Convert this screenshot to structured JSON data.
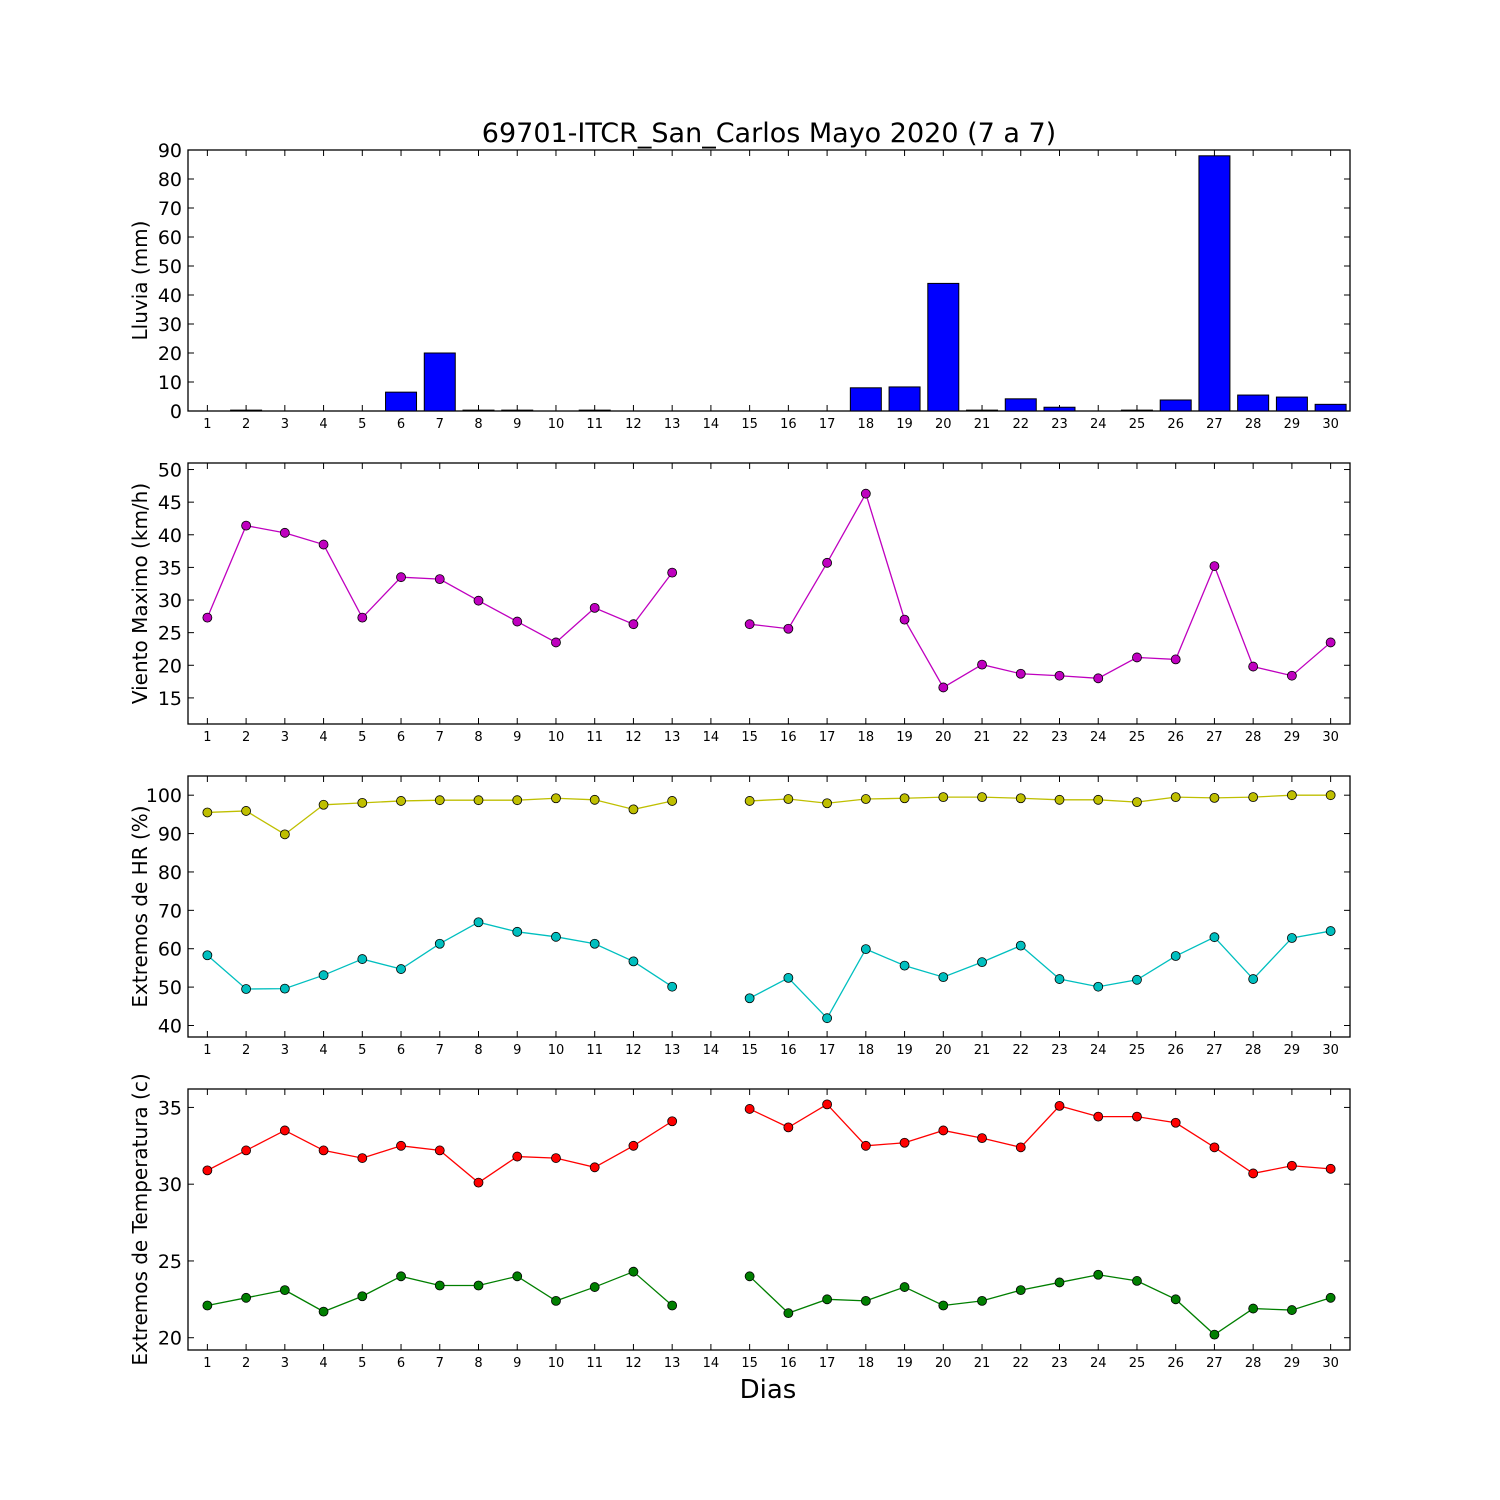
{
  "title": "69701-ITCR_San_Carlos Mayo 2020  (7 a 7)",
  "xlabel": "Dias",
  "chart_data": [
    {
      "type": "bar",
      "ylabel": "Lluvia (mm)",
      "ylim": [
        0,
        90
      ],
      "yticks": [
        0,
        10,
        20,
        30,
        40,
        50,
        60,
        70,
        80,
        90
      ],
      "x": [
        1,
        2,
        3,
        4,
        5,
        6,
        7,
        8,
        9,
        10,
        11,
        12,
        13,
        14,
        15,
        16,
        17,
        18,
        19,
        20,
        21,
        22,
        23,
        24,
        25,
        26,
        27,
        28,
        29,
        30
      ],
      "categories": [
        "1",
        "2",
        "3",
        "4",
        "5",
        "6",
        "7",
        "8",
        "9",
        "10",
        "11",
        "12",
        "13",
        "14",
        "15",
        "16",
        "17",
        "18",
        "19",
        "20",
        "21",
        "22",
        "23",
        "24",
        "25",
        "26",
        "27",
        "28",
        "29",
        "30"
      ],
      "series": [
        {
          "color": "#0000ff",
          "values": [
            0,
            0.3,
            0,
            0,
            0,
            6.5,
            20,
            0.3,
            0.3,
            0,
            0.3,
            0,
            0,
            0,
            0,
            0,
            0,
            8,
            8.3,
            44,
            0.3,
            4.2,
            1.3,
            0,
            0.3,
            3.8,
            88,
            5.5,
            4.8,
            2.3
          ]
        }
      ]
    },
    {
      "type": "line",
      "ylabel": "Viento Maximo (km/h)",
      "ylim": [
        11,
        51
      ],
      "yticks": [
        15,
        20,
        25,
        30,
        35,
        40,
        45,
        50
      ],
      "x": [
        1,
        2,
        3,
        4,
        5,
        6,
        7,
        8,
        9,
        10,
        11,
        12,
        13,
        14,
        15,
        16,
        17,
        18,
        19,
        20,
        21,
        22,
        23,
        24,
        25,
        26,
        27,
        28,
        29,
        30
      ],
      "categories": [
        "1",
        "2",
        "3",
        "4",
        "5",
        "6",
        "7",
        "8",
        "9",
        "10",
        "11",
        "12",
        "13",
        "14",
        "15",
        "16",
        "17",
        "18",
        "19",
        "20",
        "21",
        "22",
        "23",
        "24",
        "25",
        "26",
        "27",
        "28",
        "29",
        "30"
      ],
      "series": [
        {
          "color": "#bf00bf",
          "values": [
            27.3,
            41.4,
            40.3,
            38.5,
            27.3,
            33.5,
            33.2,
            29.9,
            26.7,
            23.5,
            28.8,
            26.3,
            34.2,
            null,
            26.3,
            25.6,
            35.7,
            46.3,
            27,
            16.6,
            20.1,
            18.7,
            18.4,
            18,
            21.2,
            20.9,
            35.2,
            19.8,
            18.4,
            23.5
          ]
        }
      ]
    },
    {
      "type": "line",
      "ylabel": "Extremos de HR (%)",
      "ylim": [
        37,
        105
      ],
      "yticks": [
        40,
        50,
        60,
        70,
        80,
        90,
        100
      ],
      "x": [
        1,
        2,
        3,
        4,
        5,
        6,
        7,
        8,
        9,
        10,
        11,
        12,
        13,
        14,
        15,
        16,
        17,
        18,
        19,
        20,
        21,
        22,
        23,
        24,
        25,
        26,
        27,
        28,
        29,
        30
      ],
      "categories": [
        "1",
        "2",
        "3",
        "4",
        "5",
        "6",
        "7",
        "8",
        "9",
        "10",
        "11",
        "12",
        "13",
        "14",
        "15",
        "16",
        "17",
        "18",
        "19",
        "20",
        "21",
        "22",
        "23",
        "24",
        "25",
        "26",
        "27",
        "28",
        "29",
        "30"
      ],
      "series": [
        {
          "color": "#bfbf00",
          "values": [
            95.5,
            95.9,
            89.8,
            97.5,
            98,
            98.5,
            98.7,
            98.7,
            98.7,
            99.2,
            98.8,
            96.3,
            98.5,
            null,
            98.5,
            99,
            97.9,
            99,
            99.2,
            99.5,
            99.5,
            99.2,
            98.8,
            98.8,
            98.2,
            99.5,
            99.3,
            99.5,
            100,
            100
          ]
        },
        {
          "color": "#00bfbf",
          "values": [
            58.3,
            49.5,
            49.6,
            53.1,
            57.3,
            54.7,
            61.3,
            66.9,
            64.4,
            63.1,
            61.3,
            56.7,
            50.1,
            null,
            47.1,
            52.4,
            41.9,
            59.9,
            55.6,
            52.6,
            56.5,
            60.8,
            52.1,
            50.1,
            51.9,
            58.1,
            63,
            52.1,
            62.8,
            64.6
          ]
        }
      ]
    },
    {
      "type": "line",
      "ylabel": "Extremos de Temperatura (c)",
      "ylim": [
        19.2,
        36.2
      ],
      "yticks": [
        20,
        25,
        30,
        35
      ],
      "x": [
        1,
        2,
        3,
        4,
        5,
        6,
        7,
        8,
        9,
        10,
        11,
        12,
        13,
        14,
        15,
        16,
        17,
        18,
        19,
        20,
        21,
        22,
        23,
        24,
        25,
        26,
        27,
        28,
        29,
        30
      ],
      "categories": [
        "1",
        "2",
        "3",
        "4",
        "5",
        "6",
        "7",
        "8",
        "9",
        "10",
        "11",
        "12",
        "13",
        "14",
        "15",
        "16",
        "17",
        "18",
        "19",
        "20",
        "21",
        "22",
        "23",
        "24",
        "25",
        "26",
        "27",
        "28",
        "29",
        "30"
      ],
      "series": [
        {
          "color": "#ff0000",
          "values": [
            30.9,
            32.2,
            33.5,
            32.2,
            31.7,
            32.5,
            32.2,
            30.1,
            31.8,
            31.7,
            31.1,
            32.5,
            34.1,
            null,
            34.9,
            33.7,
            35.2,
            32.5,
            32.7,
            33.5,
            33,
            32.4,
            35.1,
            34.4,
            34.4,
            34,
            32.4,
            30.7,
            31.2,
            31
          ]
        },
        {
          "color": "#007f00",
          "values": [
            22.1,
            22.6,
            23.1,
            21.7,
            22.7,
            24,
            23.4,
            23.4,
            24,
            22.4,
            23.3,
            24.3,
            22.1,
            null,
            24,
            21.6,
            22.5,
            22.4,
            23.3,
            22.1,
            22.4,
            23.1,
            23.6,
            24.1,
            23.7,
            22.5,
            20.2,
            21.9,
            21.8,
            22.6
          ]
        }
      ]
    }
  ]
}
